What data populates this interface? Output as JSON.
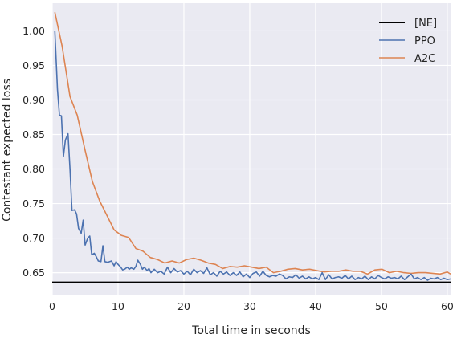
{
  "chart_data": {
    "type": "line",
    "title": "",
    "xlabel": "Total time in seconds",
    "ylabel": "Contestant expected loss",
    "xlim": [
      0,
      60.5
    ],
    "ylim": [
      0.617,
      1.04
    ],
    "xticks": [
      0,
      10,
      20,
      30,
      40,
      50,
      60
    ],
    "yticks": [
      0.65,
      0.7,
      0.75,
      0.8,
      0.85,
      0.9,
      0.95,
      1.0
    ],
    "grid": true,
    "background": "#eaeaf2",
    "legend_position": "top-right",
    "series": [
      {
        "name": "[NE]",
        "color": "#000000",
        "kind": "hline",
        "y": 0.636
      },
      {
        "name": "PPO",
        "color": "#4c72b0",
        "x": [
          0.4,
          0.8,
          1.1,
          1.4,
          1.7,
          2.0,
          2.4,
          2.7,
          3.0,
          3.4,
          3.7,
          4.0,
          4.4,
          4.7,
          5.0,
          5.4,
          5.7,
          6.0,
          6.4,
          6.7,
          7.0,
          7.4,
          7.7,
          8.0,
          8.4,
          8.7,
          9.0,
          9.4,
          9.7,
          10.0,
          10.4,
          10.7,
          11.0,
          11.4,
          11.7,
          12.0,
          12.4,
          12.7,
          13.0,
          13.4,
          13.7,
          14.0,
          14.4,
          14.7,
          15.0,
          15.5,
          16.0,
          16.5,
          17.0,
          17.5,
          18.0,
          18.5,
          19.0,
          19.5,
          20.0,
          20.5,
          21.0,
          21.5,
          22.0,
          22.5,
          23.0,
          23.5,
          24.0,
          24.5,
          25.0,
          25.5,
          26.0,
          26.5,
          27.0,
          27.5,
          28.0,
          28.5,
          29.0,
          29.5,
          30.0,
          30.5,
          31.0,
          31.5,
          32.0,
          32.5,
          33.0,
          33.5,
          34.0,
          34.5,
          35.0,
          35.5,
          36.0,
          36.5,
          37.0,
          37.5,
          38.0,
          38.5,
          39.0,
          39.5,
          40.0,
          40.5,
          41.0,
          41.5,
          42.0,
          42.5,
          43.0,
          43.5,
          44.0,
          44.5,
          45.0,
          45.5,
          46.0,
          46.5,
          47.0,
          47.5,
          48.0,
          48.5,
          49.0,
          49.5,
          50.0,
          50.5,
          51.0,
          51.5,
          52.0,
          52.5,
          53.0,
          53.5,
          54.0,
          54.5,
          55.0,
          55.5,
          56.0,
          56.5,
          57.0,
          57.5,
          58.0,
          58.5,
          59.0,
          59.5,
          60.0,
          60.5
        ],
        "values": [
          1.0,
          0.915,
          0.878,
          0.877,
          0.818,
          0.842,
          0.851,
          0.8,
          0.74,
          0.741,
          0.735,
          0.714,
          0.707,
          0.726,
          0.69,
          0.7,
          0.703,
          0.676,
          0.678,
          0.673,
          0.667,
          0.666,
          0.689,
          0.666,
          0.665,
          0.666,
          0.667,
          0.66,
          0.666,
          0.662,
          0.658,
          0.654,
          0.655,
          0.658,
          0.655,
          0.657,
          0.655,
          0.659,
          0.668,
          0.662,
          0.655,
          0.658,
          0.653,
          0.656,
          0.65,
          0.655,
          0.65,
          0.652,
          0.648,
          0.658,
          0.65,
          0.656,
          0.651,
          0.653,
          0.648,
          0.652,
          0.647,
          0.655,
          0.65,
          0.653,
          0.649,
          0.657,
          0.647,
          0.65,
          0.645,
          0.652,
          0.648,
          0.651,
          0.646,
          0.65,
          0.646,
          0.651,
          0.644,
          0.648,
          0.643,
          0.649,
          0.651,
          0.645,
          0.652,
          0.646,
          0.644,
          0.646,
          0.645,
          0.648,
          0.646,
          0.641,
          0.644,
          0.643,
          0.647,
          0.642,
          0.645,
          0.641,
          0.644,
          0.641,
          0.643,
          0.64,
          0.65,
          0.64,
          0.647,
          0.641,
          0.643,
          0.644,
          0.642,
          0.646,
          0.641,
          0.645,
          0.64,
          0.643,
          0.641,
          0.645,
          0.64,
          0.644,
          0.641,
          0.646,
          0.643,
          0.641,
          0.644,
          0.642,
          0.643,
          0.641,
          0.645,
          0.64,
          0.644,
          0.648,
          0.641,
          0.643,
          0.64,
          0.643,
          0.639,
          0.642,
          0.641,
          0.643,
          0.64,
          0.642,
          0.64,
          0.641
        ]
      },
      {
        "name": "A2C",
        "color": "#dd8452",
        "x": [
          0.4,
          1.5,
          2.7,
          3.8,
          5.0,
          6.1,
          7.2,
          8.3,
          9.4,
          10.5,
          11.6,
          12.7,
          13.8,
          14.9,
          16.0,
          17.1,
          18.2,
          19.3,
          20.4,
          21.5,
          22.6,
          23.7,
          24.8,
          25.9,
          27.0,
          28.1,
          29.2,
          30.3,
          31.4,
          32.5,
          33.6,
          34.7,
          35.8,
          36.9,
          38.0,
          39.1,
          40.2,
          41.3,
          42.4,
          43.5,
          44.6,
          45.7,
          46.8,
          47.9,
          49.0,
          50.1,
          51.2,
          52.3,
          53.4,
          54.5,
          55.6,
          56.7,
          57.8,
          58.9,
          60.0,
          60.5
        ],
        "values": [
          1.027,
          0.978,
          0.905,
          0.878,
          0.827,
          0.782,
          0.754,
          0.733,
          0.712,
          0.704,
          0.701,
          0.685,
          0.681,
          0.672,
          0.669,
          0.664,
          0.667,
          0.664,
          0.669,
          0.671,
          0.668,
          0.664,
          0.662,
          0.656,
          0.659,
          0.658,
          0.66,
          0.658,
          0.656,
          0.658,
          0.65,
          0.652,
          0.655,
          0.656,
          0.654,
          0.655,
          0.653,
          0.651,
          0.652,
          0.652,
          0.654,
          0.652,
          0.652,
          0.648,
          0.654,
          0.655,
          0.65,
          0.652,
          0.65,
          0.649,
          0.65,
          0.65,
          0.649,
          0.648,
          0.651,
          0.648
        ]
      }
    ]
  }
}
